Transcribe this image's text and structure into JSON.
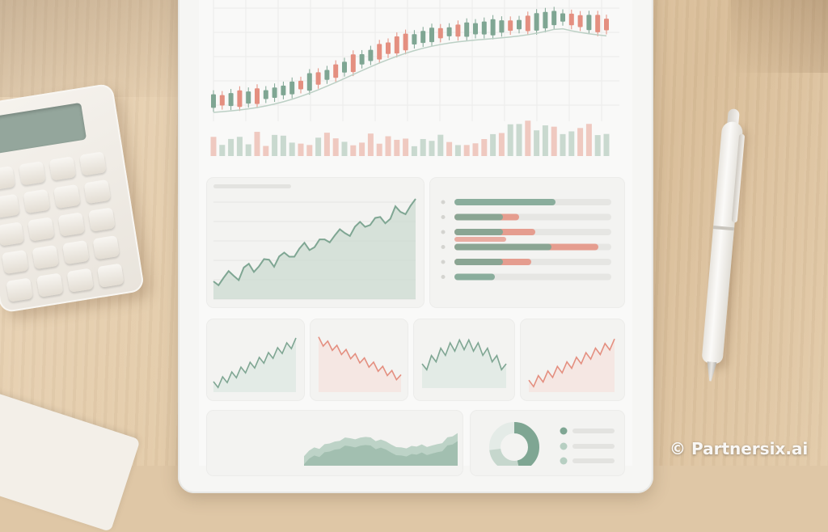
{
  "watermark": {
    "text": "© Partnersix.ai"
  },
  "colors": {
    "accent_green": "#7fa693",
    "accent_red": "#e48f80",
    "desk_wood": "#e2c9a6",
    "screen_bg": "#f9f9f8"
  },
  "icons": {
    "watermark": "copyright-symbol"
  }
}
